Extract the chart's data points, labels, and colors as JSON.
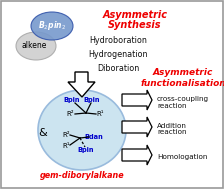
{
  "bg_color": "#ffffff",
  "border_color": "#999999",
  "b2pin2_color": "#7799cc",
  "alkene_color": "#d0d0d0",
  "alkene_edge": "#aaaaaa",
  "circle_fill": "#cce4f0",
  "circle_edge": "#99bbdd",
  "red_color": "#ee0000",
  "blue_color": "#0000cc",
  "black_color": "#111111",
  "synth_title_line1": "Asymmetric",
  "synth_title_line2": "Synthesis",
  "func_title_line1": "Asymmetric",
  "func_title_line2": "functionalisation",
  "reactions_synth": [
    "Hydroboration",
    "Hydrogenation",
    "Diboration"
  ],
  "reactions_func": [
    "cross-coupling\nreaction",
    "Addition\nreaction",
    "Homologation"
  ],
  "bottom_label": "gem-diborylalkane",
  "alkene_label": "alkene",
  "b2pin2_label": "B₂pin₂",
  "ampersand": "&"
}
